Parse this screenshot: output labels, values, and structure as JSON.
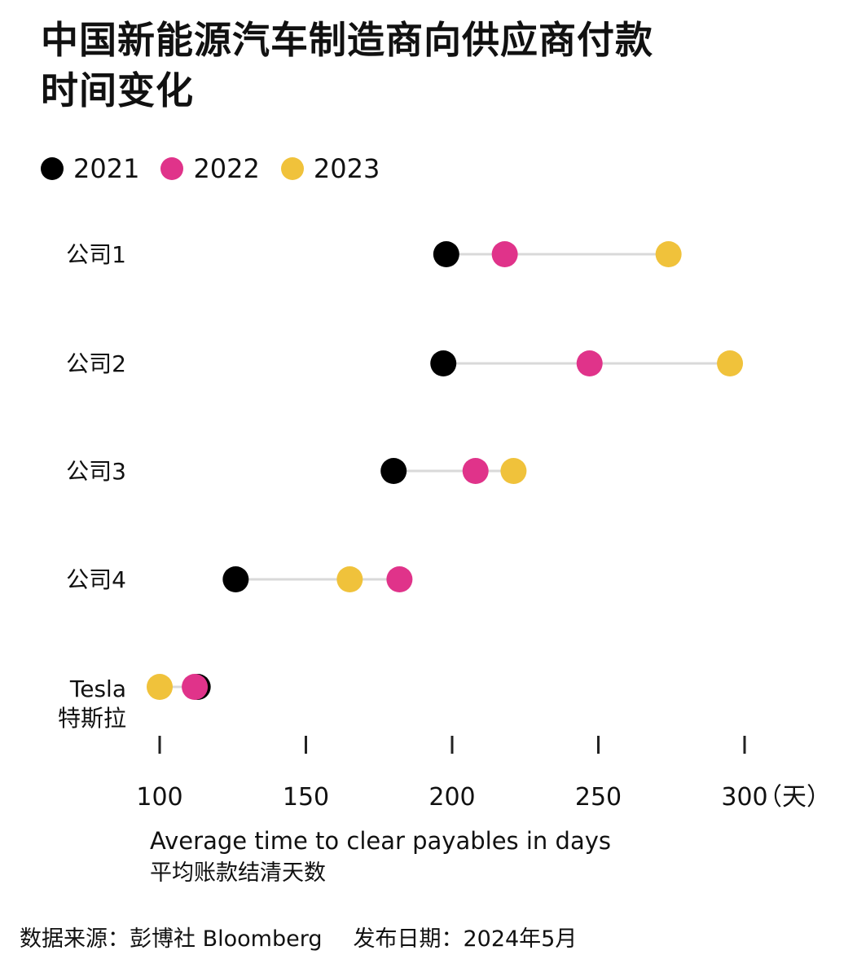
{
  "title_lines": [
    "中国新能源汽车制造商向供应商付款",
    "时间变化"
  ],
  "legend": [
    {
      "label": "2021",
      "color": "#000000"
    },
    {
      "label": "2022",
      "color": "#e0338a"
    },
    {
      "label": "2023",
      "color": "#f0c23b"
    }
  ],
  "chart_data": {
    "type": "scatter",
    "subtype": "dumbbell",
    "title": "中国新能源汽车制造商向供应商付款时间变化",
    "categories": [
      "公司1",
      "公司2",
      "公司3",
      "公司4",
      "Tesla 特斯拉"
    ],
    "category_lines": [
      [
        "公司1"
      ],
      [
        "公司2"
      ],
      [
        "公司3"
      ],
      [
        "公司4"
      ],
      [
        "Tesla",
        "特斯拉"
      ]
    ],
    "series": [
      {
        "name": "2021",
        "color": "#000000",
        "values": [
          198,
          197,
          180,
          126,
          113
        ]
      },
      {
        "name": "2022",
        "color": "#e0338a",
        "values": [
          218,
          247,
          208,
          182,
          112
        ]
      },
      {
        "name": "2023",
        "color": "#f0c23b",
        "values": [
          274,
          295,
          221,
          165,
          100
        ]
      }
    ],
    "xlim": [
      100,
      300
    ],
    "xticks": [
      100,
      150,
      200,
      250,
      300
    ],
    "x_unit_label": "（天）",
    "xlabel": "Average time to clear payables in days",
    "xlabel_cn": "平均账款结清天数",
    "legend_position": "top-left",
    "grid": false,
    "connector_color": "#d9d9d9"
  },
  "source": {
    "text": "数据来源：彭博社 Bloomberg",
    "date": "发布日期：2024年5月"
  }
}
